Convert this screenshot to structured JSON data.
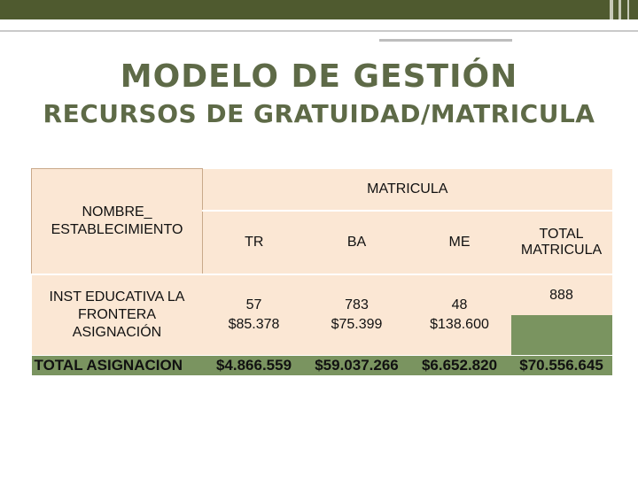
{
  "slide": {
    "title": "MODELO DE GESTIÓN",
    "subtitle": "RECURSOS DE GRATUIDAD/MATRICULA"
  },
  "table": {
    "name_header": "NOMBRE_ ESTABLECIMIENTO",
    "group_header": "MATRICULA",
    "columns": [
      "TR",
      "BA",
      "ME",
      "TOTAL MATRICULA"
    ],
    "row": {
      "label": "INST EDUCATIVA LA FRONTERA ASIGNACIÓN",
      "tr": {
        "matricula": "57",
        "asignacion": "$85.378"
      },
      "ba": {
        "matricula": "783",
        "asignacion": "$75.399"
      },
      "me": {
        "matricula": "48",
        "asignacion": "$138.600"
      },
      "total_matricula": "888"
    },
    "total_row": {
      "label": "TOTAL ASIGNACION",
      "tr": "$4.866.559",
      "ba": "$59.037.266",
      "me": "$6.652.820",
      "total": "$70.556.645"
    }
  },
  "colors": {
    "title": "#5e6a47",
    "top_bar": "#4f5a2f",
    "header_fill": "#fbe7d4",
    "total_fill": "#7a9460"
  }
}
